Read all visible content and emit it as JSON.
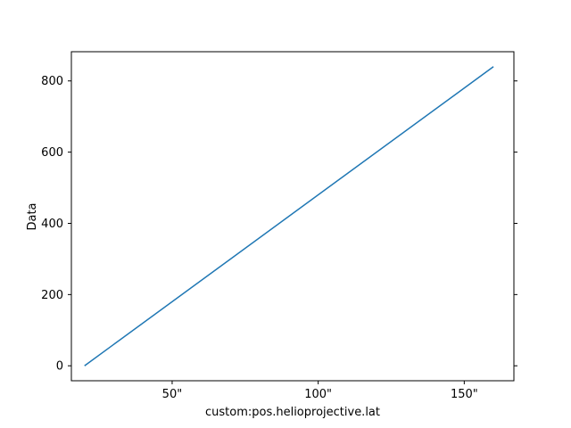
{
  "chart_data": {
    "type": "line",
    "xlabel": "custom:pos.helioprojective.lat",
    "ylabel": "Data",
    "xlim": [
      15.5,
      167
    ],
    "ylim": [
      -42,
      882
    ],
    "x_ticks": [
      50,
      100,
      150
    ],
    "x_tick_labels": [
      "50\"",
      "100\"",
      "150\""
    ],
    "y_ticks": [
      0,
      200,
      400,
      600,
      800
    ],
    "y_tick_labels": [
      "0",
      "200",
      "400",
      "600",
      "800"
    ],
    "grid": false,
    "right_axis_ticks": true,
    "series": [
      {
        "color": "#1f77b4",
        "x": [
          20,
          160
        ],
        "y": [
          0,
          840
        ]
      }
    ]
  }
}
